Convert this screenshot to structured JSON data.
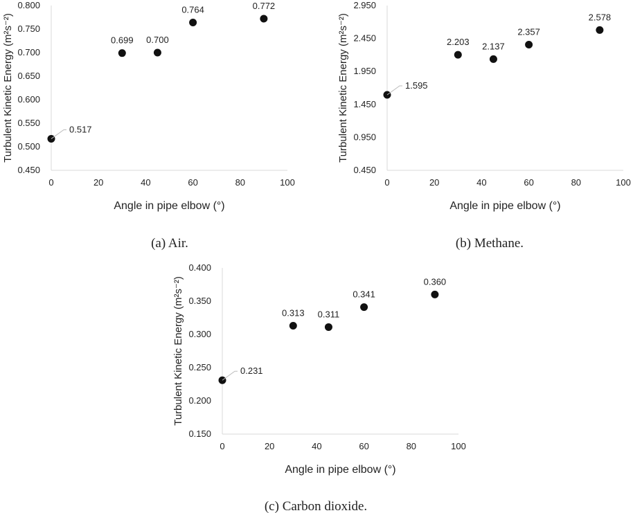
{
  "chart_data": [
    {
      "type": "scatter",
      "caption": "(a) Air.",
      "xlabel": "Angle in pipe elbow (°)",
      "ylabel": "Turbulent Kinetic Energy (m²s⁻²)",
      "xlim": [
        0,
        100
      ],
      "ylim": [
        0.45,
        0.8
      ],
      "xticks": [
        0,
        20,
        40,
        60,
        80,
        100
      ],
      "yticks": [
        "0.450",
        "0.500",
        "0.550",
        "0.600",
        "0.650",
        "0.700",
        "0.750",
        "0.800"
      ],
      "grid": false,
      "x": [
        0,
        30,
        45,
        60,
        90
      ],
      "y": [
        0.517,
        0.699,
        0.7,
        0.764,
        0.772
      ],
      "labels": [
        "0.517",
        "0.699",
        "0.700",
        "0.764",
        "0.772"
      ]
    },
    {
      "type": "scatter",
      "caption": "(b) Methane.",
      "xlabel": "Angle in pipe elbow (°)",
      "ylabel": "Turbulent Kinetic Energy (m²s⁻²)",
      "xlim": [
        0,
        100
      ],
      "ylim": [
        0.45,
        2.95
      ],
      "xticks": [
        0,
        20,
        40,
        60,
        80,
        100
      ],
      "yticks": [
        "0.450",
        "0.950",
        "1.450",
        "1.950",
        "2.450",
        "2.950"
      ],
      "grid": false,
      "x": [
        0,
        30,
        45,
        60,
        90
      ],
      "y": [
        1.595,
        2.203,
        2.137,
        2.357,
        2.578
      ],
      "labels": [
        "1.595",
        "2.203",
        "2.137",
        "2.357",
        "2.578"
      ]
    },
    {
      "type": "scatter",
      "caption": "(c) Carbon dioxide.",
      "xlabel": "Angle in pipe elbow (°)",
      "ylabel": "Turbulent Kinetic Energy (m²s⁻²)",
      "xlim": [
        0,
        100
      ],
      "ylim": [
        0.15,
        0.4
      ],
      "xticks": [
        0,
        20,
        40,
        60,
        80,
        100
      ],
      "yticks": [
        "0.150",
        "0.200",
        "0.250",
        "0.300",
        "0.350",
        "0.400"
      ],
      "grid": false,
      "x": [
        0,
        30,
        45,
        60,
        90
      ],
      "y": [
        0.231,
        0.313,
        0.311,
        0.341,
        0.36
      ],
      "labels": [
        "0.231",
        "0.313",
        "0.311",
        "0.341",
        "0.360"
      ]
    }
  ]
}
